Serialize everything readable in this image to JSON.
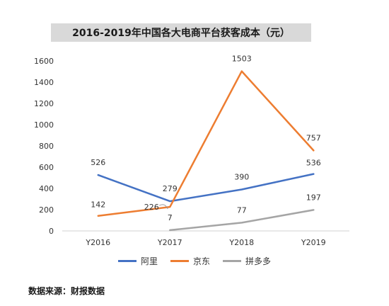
{
  "chart_data": {
    "type": "line",
    "title": "2016-2019年中国各大电商平台获客成本（元）",
    "categories": [
      "Y2016",
      "Y2017",
      "Y2018",
      "Y2019"
    ],
    "ylim": [
      0,
      1600
    ],
    "yticks": [
      0,
      200,
      400,
      600,
      800,
      1000,
      1200,
      1400,
      1600
    ],
    "grid": false,
    "legend_position": "bottom",
    "series": [
      {
        "name": "阿里",
        "color": "#4472C4",
        "values": [
          526,
          279,
          390,
          536
        ]
      },
      {
        "name": "京东",
        "color": "#ED7D31",
        "values": [
          142,
          226,
          1503,
          757
        ]
      },
      {
        "name": "拼多多",
        "color": "#A5A5A5",
        "values": [
          null,
          7,
          77,
          197
        ]
      }
    ]
  },
  "source_note": "数据来源：财报数据"
}
